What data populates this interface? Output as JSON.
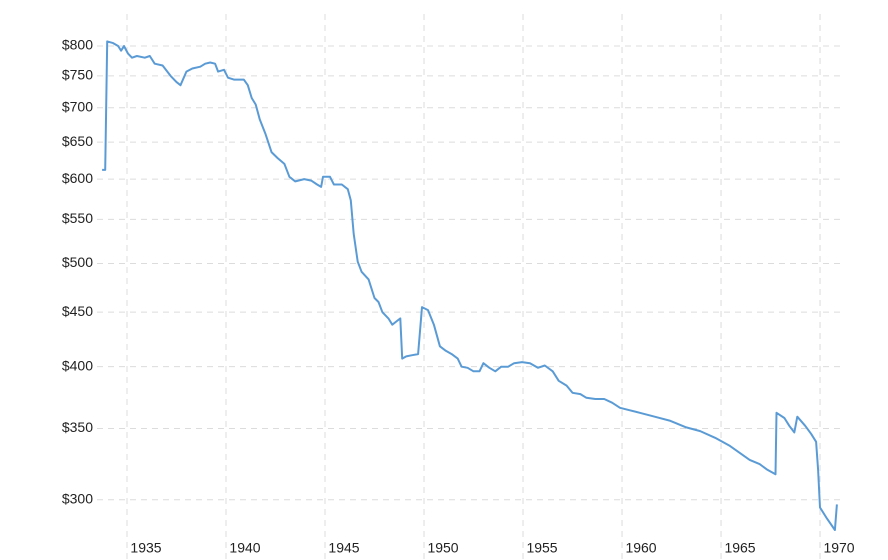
{
  "chart_data": {
    "type": "line",
    "x": [
      1933.74,
      1933.9,
      1934.0,
      1934.3,
      1934.55,
      1934.7,
      1934.85,
      1935.05,
      1935.25,
      1935.5,
      1935.9,
      1936.15,
      1936.4,
      1936.8,
      1937.2,
      1937.5,
      1937.7,
      1938.0,
      1938.3,
      1938.7,
      1938.95,
      1939.2,
      1939.45,
      1939.6,
      1939.9,
      1940.1,
      1940.4,
      1940.9,
      1941.1,
      1941.3,
      1941.5,
      1941.7,
      1942.0,
      1942.3,
      1942.6,
      1942.95,
      1943.2,
      1943.5,
      1943.95,
      1944.3,
      1944.6,
      1944.8,
      1944.9,
      1945.25,
      1945.45,
      1945.85,
      1946.15,
      1946.3,
      1946.45,
      1946.65,
      1946.85,
      1947.2,
      1947.5,
      1947.7,
      1947.9,
      1948.2,
      1948.4,
      1948.6,
      1948.8,
      1948.9,
      1949.1,
      1949.4,
      1949.7,
      1949.9,
      1950.2,
      1950.5,
      1950.8,
      1951.1,
      1951.4,
      1951.7,
      1951.9,
      1952.2,
      1952.5,
      1952.8,
      1953.0,
      1953.3,
      1953.6,
      1953.9,
      1954.25,
      1954.55,
      1954.95,
      1955.35,
      1955.75,
      1956.1,
      1956.5,
      1956.8,
      1957.2,
      1957.5,
      1957.9,
      1958.2,
      1958.65,
      1959.1,
      1959.5,
      1959.9,
      1960.4,
      1960.9,
      1961.65,
      1962.4,
      1963.2,
      1963.95,
      1964.7,
      1965.45,
      1965.95,
      1966.45,
      1966.95,
      1967.35,
      1967.75,
      1967.8,
      1968.2,
      1968.45,
      1968.7,
      1968.85,
      1969.25,
      1969.55,
      1969.8,
      1969.9,
      1970.0,
      1970.35,
      1970.75,
      1970.85
    ],
    "series": [
      {
        "color": "#5b9bd5",
        "values": [
          612,
          612,
          808,
          805,
          800,
          792,
          800,
          787,
          780,
          783,
          780,
          783,
          770,
          767,
          750,
          740,
          735,
          757,
          762,
          765,
          770,
          772,
          770,
          757,
          760,
          747,
          744,
          744,
          735,
          715,
          705,
          683,
          661,
          636,
          628,
          620,
          603,
          597,
          600,
          598,
          593,
          590,
          603,
          603,
          593,
          593,
          587,
          573,
          533,
          502,
          491,
          483,
          464,
          460,
          450,
          444,
          438,
          441,
          444,
          407,
          409,
          410,
          411,
          455,
          452,
          438,
          418,
          414,
          411,
          407,
          400,
          399,
          396,
          396,
          403,
          399,
          396,
          400,
          400,
          403,
          404,
          403,
          399,
          401,
          396,
          388,
          384,
          378,
          377,
          374,
          373,
          373,
          370,
          366,
          364,
          362,
          359,
          356,
          351,
          348,
          343,
          337,
          332,
          327,
          324,
          320,
          317,
          362,
          358,
          352,
          347,
          359,
          352,
          346,
          340,
          320,
          295,
          288,
          281,
          297
        ]
      }
    ],
    "xlim": [
      1933.5,
      1971.2
    ],
    "xticks": [
      1935,
      1940,
      1945,
      1950,
      1955,
      1960,
      1965,
      1970
    ],
    "ylim": [
      275,
      820
    ],
    "log_y": true,
    "yticks": [
      {
        "value": 300,
        "label": "$300"
      },
      {
        "value": 350,
        "label": "$350"
      },
      {
        "value": 400,
        "label": "$400"
      },
      {
        "value": 450,
        "label": "$450"
      },
      {
        "value": 500,
        "label": "$500"
      },
      {
        "value": 550,
        "label": "$550"
      },
      {
        "value": 600,
        "label": "$600"
      },
      {
        "value": 650,
        "label": "$650"
      },
      {
        "value": 700,
        "label": "$700"
      },
      {
        "value": 750,
        "label": "$750"
      },
      {
        "value": 800,
        "label": "$800"
      }
    ],
    "grid": true
  }
}
